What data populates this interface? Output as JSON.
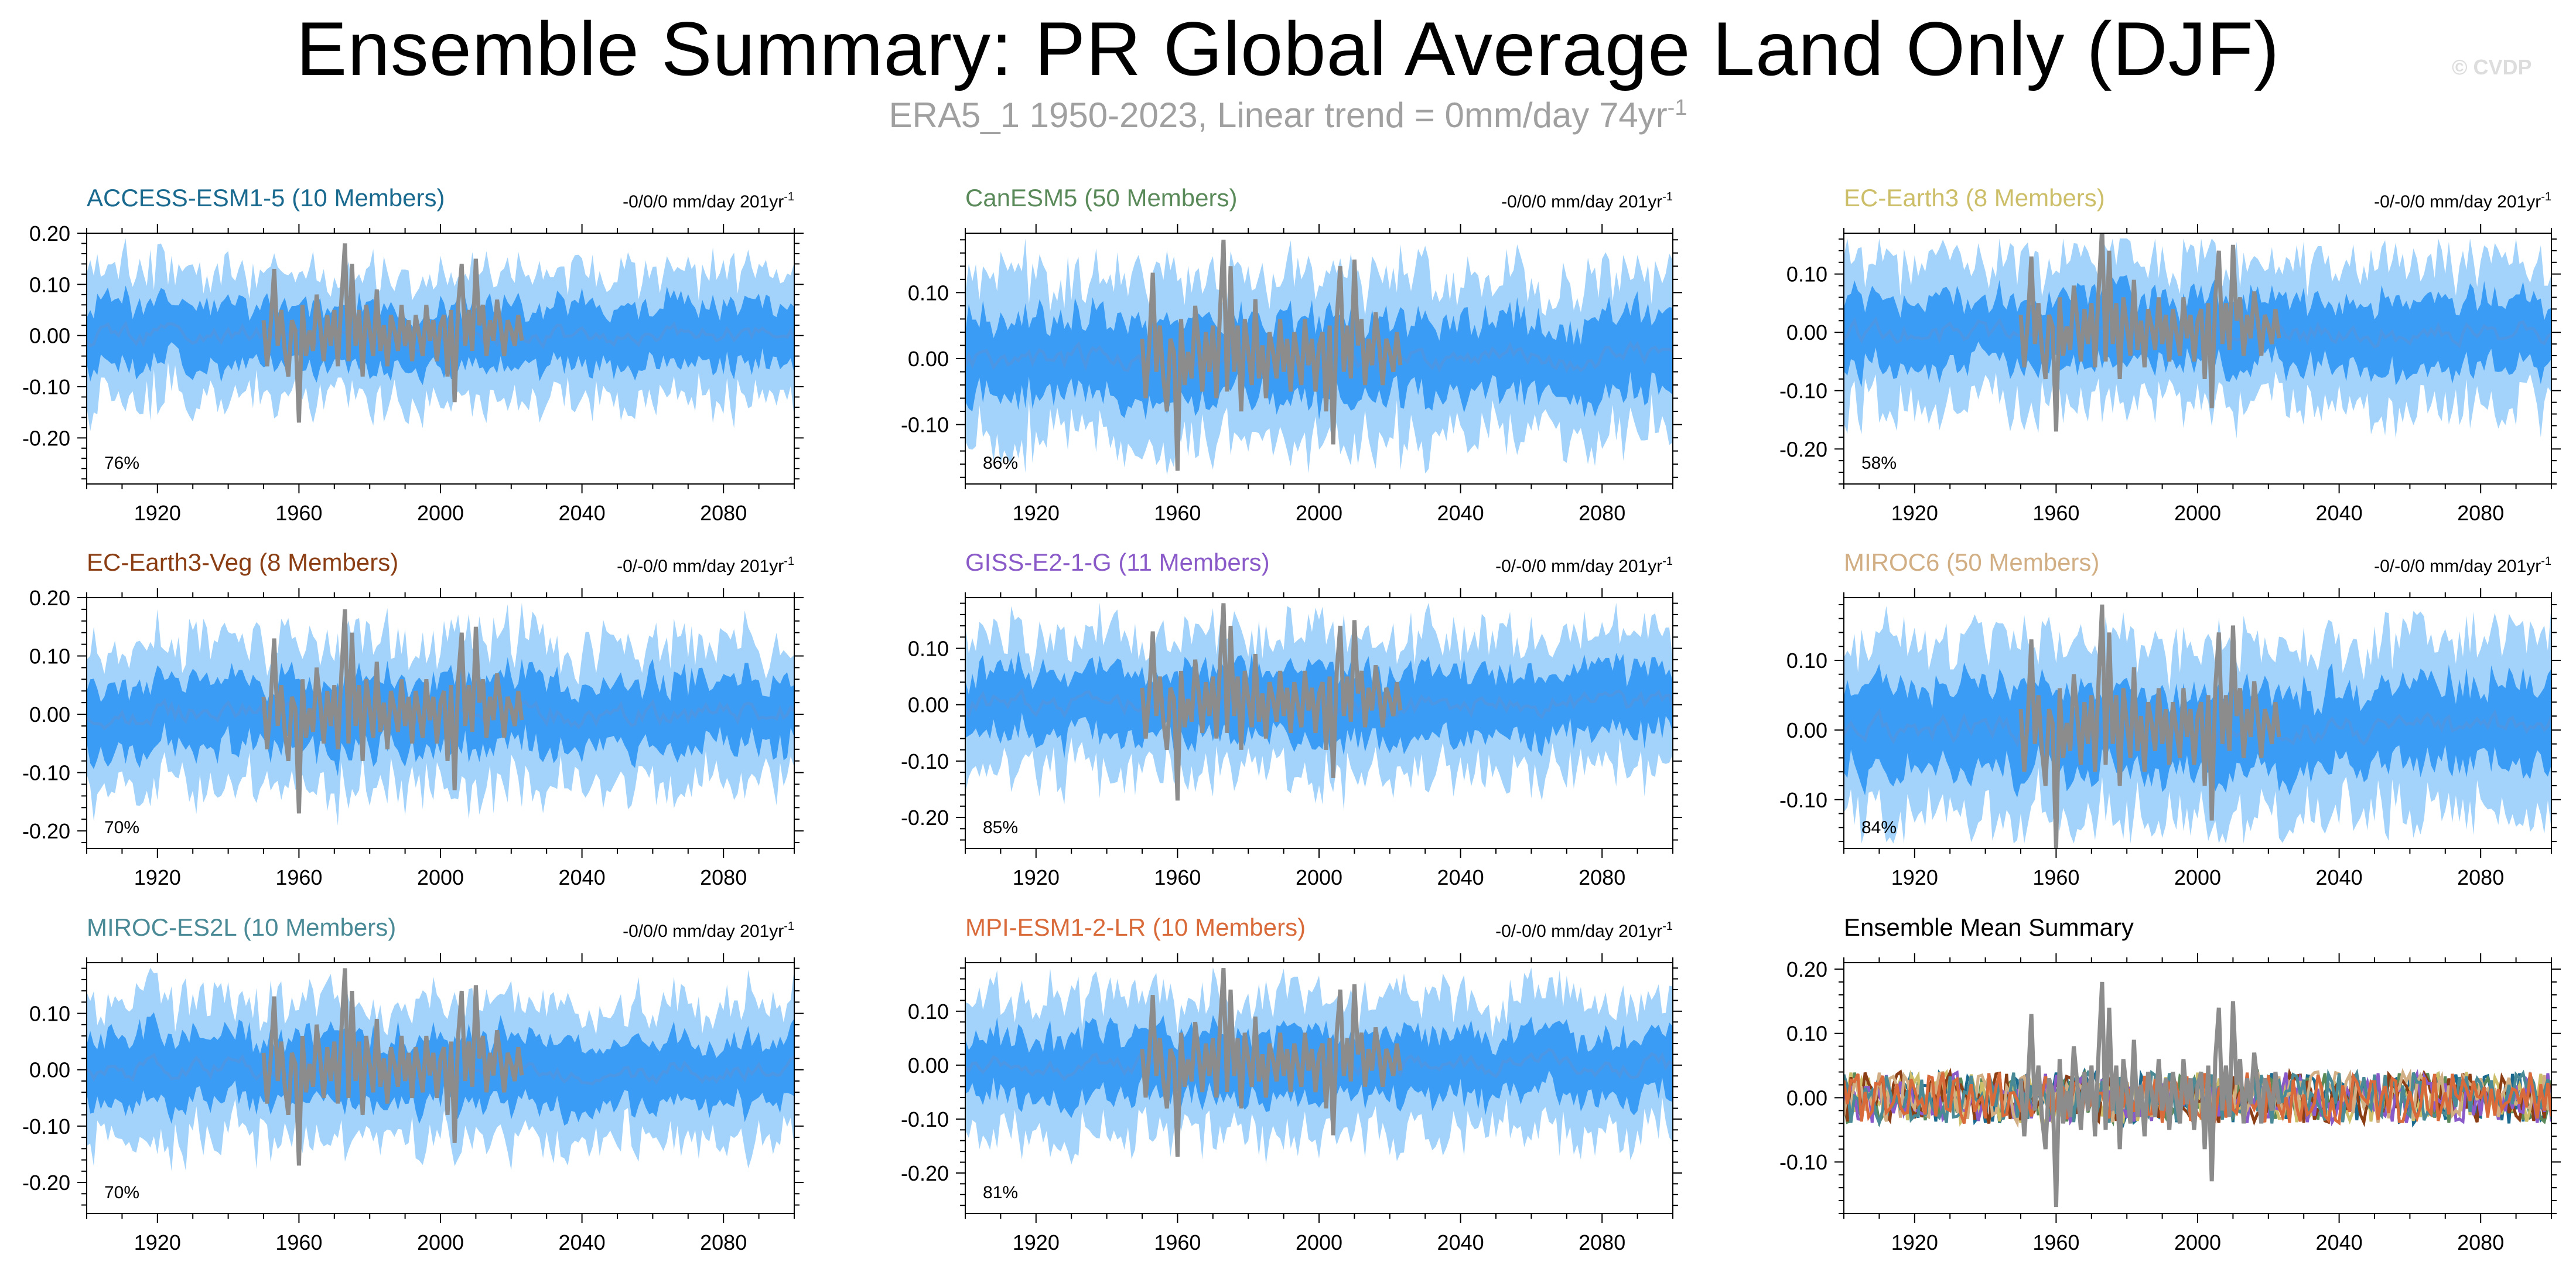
{
  "title": "Ensemble Summary: PR Global Average Land Only (DJF)",
  "subtitle": {
    "text": "ERA5_1 1950-2023, Linear trend = 0mm/day 74yr",
    "sup": "-1"
  },
  "watermark": "© CVDP",
  "colors": {
    "outer_band": "#a3d3fb",
    "inner_band": "#3a9cf4",
    "ensemble_mean": "#4b97e6",
    "observation": "#8c8c8c"
  },
  "chart_data": [
    {
      "type": "area",
      "title": "ACCESS-ESM1-5 (10 Members)",
      "title_color": "#1a6a90",
      "trend_label": "-0/0/0 mm/day 201yr",
      "trend_sup": "-1",
      "percent_label": "76%",
      "xlim": [
        1900,
        2100
      ],
      "x_ticks": [
        1920,
        1960,
        2000,
        2040,
        2080
      ],
      "x_tick_labels": [
        "1920",
        "1960",
        "2000",
        "2040",
        "2080"
      ],
      "ylim": [
        -0.29,
        0.2
      ],
      "y_ticks": [
        0.2,
        0.1,
        0.0,
        -0.1,
        -0.2
      ],
      "y_tick_labels": [
        "0.20",
        "0.10",
        "0.00",
        "-0.10",
        "-0.20"
      ],
      "series": [],
      "percent_note": "76%",
      "seed": 11
    },
    {
      "type": "area",
      "title": "CanESM5 (50 Members)",
      "title_color": "#5a8a5a",
      "trend_label": "-0/0/0 mm/day 201yr",
      "trend_sup": "-1",
      "percent_label": "86%",
      "xlim": [
        1900,
        2100
      ],
      "x_ticks": [
        1920,
        1960,
        2000,
        2040,
        2080
      ],
      "x_tick_labels": [
        "1920",
        "1960",
        "2000",
        "2040",
        "2080"
      ],
      "ylim": [
        -0.19,
        0.19
      ],
      "y_ticks": [
        0.1,
        0.0,
        -0.1
      ],
      "y_tick_labels": [
        "0.10",
        "0.00",
        "-0.10"
      ],
      "series": [],
      "seed": 23
    },
    {
      "type": "area",
      "title": "EC-Earth3 (8 Members)",
      "title_color": "#cdbf6a",
      "trend_label": "-0/-0/0 mm/day 201yr",
      "trend_sup": "-1",
      "percent_label": "58%",
      "xlim": [
        1900,
        2100
      ],
      "x_ticks": [
        1920,
        1960,
        2000,
        2040,
        2080
      ],
      "x_tick_labels": [
        "1920",
        "1960",
        "2000",
        "2040",
        "2080"
      ],
      "ylim": [
        -0.26,
        0.17
      ],
      "y_ticks": [
        0.1,
        0.0,
        -0.1,
        -0.2
      ],
      "y_tick_labels": [
        "0.10",
        "0.00",
        "-0.10",
        "-0.20"
      ],
      "series": [],
      "seed": 37
    },
    {
      "type": "area",
      "title": "EC-Earth3-Veg (8 Members)",
      "title_color": "#8b3d14",
      "trend_label": "-0/-0/0 mm/day 201yr",
      "trend_sup": "-1",
      "percent_label": "70%",
      "xlim": [
        1900,
        2100
      ],
      "x_ticks": [
        1920,
        1960,
        2000,
        2040,
        2080
      ],
      "x_tick_labels": [
        "1920",
        "1960",
        "2000",
        "2040",
        "2080"
      ],
      "ylim": [
        -0.23,
        0.2
      ],
      "y_ticks": [
        0.2,
        0.1,
        0.0,
        -0.1,
        -0.2
      ],
      "y_tick_labels": [
        "0.20",
        "0.10",
        "0.00",
        "-0.10",
        "-0.20"
      ],
      "series": [],
      "seed": 41
    },
    {
      "type": "area",
      "title": "GISS-E2-1-G (11 Members)",
      "title_color": "#8a5ac8",
      "trend_label": "-0/-0/0 mm/day 201yr",
      "trend_sup": "-1",
      "percent_label": "85%",
      "xlim": [
        1900,
        2100
      ],
      "x_ticks": [
        1920,
        1960,
        2000,
        2040,
        2080
      ],
      "x_tick_labels": [
        "1920",
        "1960",
        "2000",
        "2040",
        "2080"
      ],
      "ylim": [
        -0.255,
        0.19
      ],
      "y_ticks": [
        0.1,
        0.0,
        -0.1,
        -0.2
      ],
      "y_tick_labels": [
        "0.10",
        "0.00",
        "-0.10",
        "-0.20"
      ],
      "series": [],
      "seed": 53
    },
    {
      "type": "area",
      "title": "MIROC6 (50 Members)",
      "title_color": "#d2ae84",
      "trend_label": "-0/-0/0 mm/day 201yr",
      "trend_sup": "-1",
      "percent_label": "84%",
      "xlim": [
        1900,
        2100
      ],
      "x_ticks": [
        1920,
        1960,
        2000,
        2040,
        2080
      ],
      "x_tick_labels": [
        "1920",
        "1960",
        "2000",
        "2040",
        "2080"
      ],
      "ylim": [
        -0.17,
        0.19
      ],
      "y_ticks": [
        0.1,
        0.0,
        -0.1
      ],
      "y_tick_labels": [
        "0.10",
        "0.00",
        "-0.10"
      ],
      "series": [],
      "seed": 67
    },
    {
      "type": "area",
      "title": "MIROC-ES2L (10 Members)",
      "title_color": "#4a8a96",
      "trend_label": "-0/0/0 mm/day 201yr",
      "trend_sup": "-1",
      "percent_label": "70%",
      "xlim": [
        1900,
        2100
      ],
      "x_ticks": [
        1920,
        1960,
        2000,
        2040,
        2080
      ],
      "x_tick_labels": [
        "1920",
        "1960",
        "2000",
        "2040",
        "2080"
      ],
      "ylim": [
        -0.255,
        0.19
      ],
      "y_ticks": [
        0.1,
        0.0,
        -0.1,
        -0.2
      ],
      "y_tick_labels": [
        "0.10",
        "0.00",
        "-0.10",
        "-0.20"
      ],
      "series": [],
      "seed": 71
    },
    {
      "type": "area",
      "title": "MPI-ESM1-2-LR (10 Members)",
      "title_color": "#d96a3a",
      "trend_label": "-0/-0/0 mm/day 201yr",
      "trend_sup": "-1",
      "percent_label": "81%",
      "xlim": [
        1900,
        2100
      ],
      "x_ticks": [
        1920,
        1960,
        2000,
        2040,
        2080
      ],
      "x_tick_labels": [
        "1920",
        "1960",
        "2000",
        "2040",
        "2080"
      ],
      "ylim": [
        -0.275,
        0.19
      ],
      "y_ticks": [
        0.1,
        0.0,
        -0.1,
        -0.2
      ],
      "y_tick_labels": [
        "0.10",
        "0.00",
        "-0.10",
        "-0.20"
      ],
      "series": [],
      "seed": 83
    },
    {
      "type": "line",
      "title": "Ensemble Mean Summary",
      "title_color": "#000000",
      "trend_label": "",
      "trend_sup": "",
      "percent_label": "",
      "xlim": [
        1900,
        2100
      ],
      "x_ticks": [
        1920,
        1960,
        2000,
        2040,
        2080
      ],
      "x_tick_labels": [
        "1920",
        "1960",
        "2000",
        "2040",
        "2080"
      ],
      "ylim": [
        -0.18,
        0.21
      ],
      "y_ticks": [
        0.2,
        0.1,
        0.0,
        -0.1
      ],
      "y_tick_labels": [
        "0.20",
        "0.10",
        "0.00",
        "-0.10"
      ],
      "line_colors": [
        "#1a6a90",
        "#5a8a5a",
        "#cdbf6a",
        "#8b3d14",
        "#8a5ac8",
        "#d2ae84",
        "#4a8a96",
        "#d96a3a"
      ],
      "series": [],
      "seed": 97
    }
  ],
  "observation": {
    "name": "ERA5_1",
    "x": [
      1950,
      1951,
      1952,
      1953,
      1954,
      1955,
      1956,
      1957,
      1958,
      1959,
      1960,
      1961,
      1962,
      1963,
      1964,
      1965,
      1966,
      1967,
      1968,
      1969,
      1970,
      1971,
      1972,
      1973,
      1974,
      1975,
      1976,
      1977,
      1978,
      1979,
      1980,
      1981,
      1982,
      1983,
      1984,
      1985,
      1986,
      1987,
      1988,
      1989,
      1990,
      1991,
      1992,
      1993,
      1994,
      1995,
      1996,
      1997,
      1998,
      1999,
      2000,
      2001,
      2002,
      2003,
      2004,
      2005,
      2006,
      2007,
      2008,
      2009,
      2010,
      2011,
      2012,
      2013,
      2014,
      2015,
      2016,
      2017,
      2018,
      2019,
      2020,
      2021,
      2022,
      2023
    ],
    "y": [
      0.03,
      -0.06,
      0.02,
      0.13,
      -0.02,
      0.05,
      -0.03,
      -0.08,
      0.03,
      0.01,
      -0.17,
      0.06,
      -0.04,
      0.01,
      -0.03,
      0.08,
      0.02,
      -0.05,
      0.04,
      -0.02,
      0.05,
      -0.06,
      0.07,
      0.18,
      -0.05,
      0.14,
      -0.02,
      0.05,
      -0.08,
      0.06,
      0.01,
      -0.04,
      0.09,
      -0.03,
      0.02,
      -0.06,
      0.04,
      0.01,
      -0.03,
      0.06,
      -0.02,
      0.03,
      -0.05,
      0.04,
      0.0,
      -0.04,
      0.06,
      -0.01,
      0.03,
      -0.05,
      0.02,
      0.04,
      -0.08,
      0.05,
      -0.13,
      0.06,
      0.14,
      -0.02,
      0.05,
      -0.03,
      0.15,
      0.02,
      0.06,
      -0.04,
      0.03,
      -0.01,
      0.07,
      0.02,
      -0.04,
      0.03,
      0.01,
      -0.02,
      0.04,
      -0.01
    ]
  }
}
